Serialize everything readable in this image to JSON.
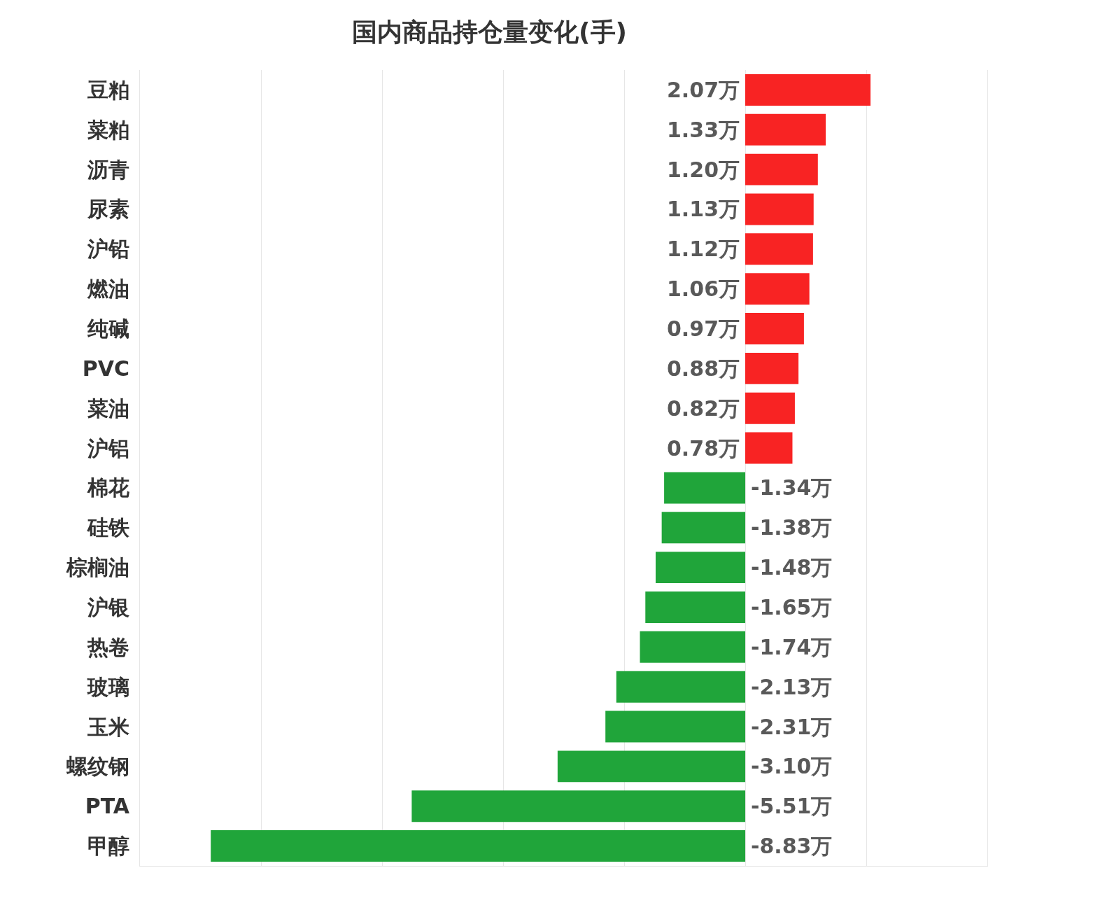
{
  "chart_data": {
    "type": "bar",
    "orientation": "horizontal",
    "title": "国内商品持仓量变化(手)",
    "categories": [
      "豆粕",
      "菜粕",
      "沥青",
      "尿素",
      "沪铅",
      "燃油",
      "纯碱",
      "PVC",
      "菜油",
      "沪铝",
      "棉花",
      "硅铁",
      "棕榈油",
      "沪银",
      "热卷",
      "玻璃",
      "玉米",
      "螺纹钢",
      "PTA",
      "甲醇"
    ],
    "values": [
      2.07,
      1.33,
      1.2,
      1.13,
      1.12,
      1.06,
      0.97,
      0.88,
      0.82,
      0.78,
      -1.34,
      -1.38,
      -1.48,
      -1.65,
      -1.74,
      -2.13,
      -2.31,
      -3.1,
      -5.51,
      -8.83
    ],
    "value_labels": [
      "2.07万",
      "1.33万",
      "1.20万",
      "1.13万",
      "1.12万",
      "1.06万",
      "0.97万",
      "0.88万",
      "0.82万",
      "0.78万",
      "-1.34万",
      "-1.38万",
      "-1.48万",
      "-1.65万",
      "-1.74万",
      "-2.13万",
      "-2.31万",
      "-3.10万",
      "-5.51万",
      "-8.83万"
    ],
    "colors": [
      "#f82323",
      "#f82323",
      "#f82323",
      "#f82323",
      "#f82323",
      "#f82323",
      "#f82323",
      "#f82323",
      "#f82323",
      "#f82323",
      "#20a53a",
      "#20a53a",
      "#20a53a",
      "#20a53a",
      "#20a53a",
      "#20a53a",
      "#20a53a",
      "#20a53a",
      "#20a53a",
      "#20a53a"
    ],
    "xlim": [
      -10,
      4
    ],
    "xticks": [
      {
        "value": -8,
        "label": null
      },
      {
        "value": -6,
        "label": null
      },
      {
        "value": -4,
        "label": null
      },
      {
        "value": -2,
        "label": null
      },
      {
        "value": 0,
        "label": null
      },
      {
        "value": 2,
        "label": null
      }
    ],
    "tick_labels": "y",
    "grid": "x"
  }
}
